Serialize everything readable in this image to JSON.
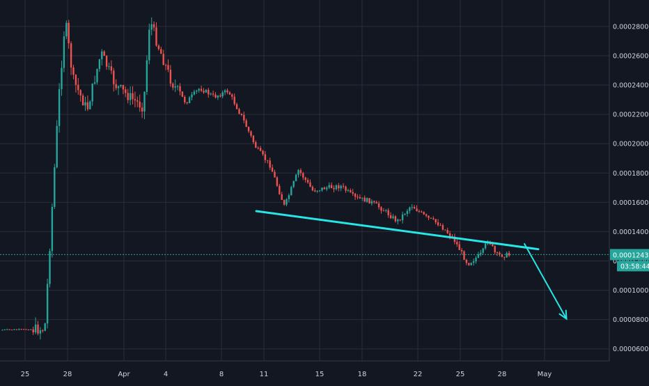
{
  "chart_data": {
    "type": "candlestick",
    "x_ticks": [
      "25",
      "28",
      "Apr",
      "4",
      "8",
      "11",
      "15",
      "18",
      "22",
      "25",
      "28",
      "May"
    ],
    "y_ticks": [
      "0.00006000",
      "0.00008000",
      "0.00010000",
      "0.00012000",
      "0.00014000",
      "0.00016000",
      "0.00018000",
      "0.00020000",
      "0.00022000",
      "0.00024000",
      "0.00026000",
      "0.00028000"
    ],
    "ylim": [
      5.18e-05,
      0.000298
    ],
    "last_price": "0.00012432",
    "countdown": "03:58:44",
    "colors": {
      "up": "#26a69a",
      "down": "#ef5350",
      "drawing": "#26e6e6",
      "price_line": "#26a69a",
      "background": "#131722",
      "grid": "#2a2e39"
    },
    "anchors": [
      {
        "date": "Mar 22",
        "price": 7.3e-05
      },
      {
        "date": "Mar 25",
        "price": 7.35e-05
      },
      {
        "date": "Mar 26",
        "price": 0.000232
      },
      {
        "date": "Mar 26 pm",
        "price": 0.000285
      },
      {
        "date": "Mar 27",
        "price": 0.000244
      },
      {
        "date": "Mar 28",
        "price": 0.000223
      },
      {
        "date": "Mar 29",
        "price": 0.000262
      },
      {
        "date": "Mar 30",
        "price": 0.00024
      },
      {
        "date": "Mar 31",
        "price": 0.000232
      },
      {
        "date": "Apr 1",
        "price": 0.000225
      },
      {
        "date": "Apr 1 pm",
        "price": 0.000285
      },
      {
        "date": "Apr 2",
        "price": 0.000268
      },
      {
        "date": "Apr 3",
        "price": 0.000242
      },
      {
        "date": "Apr 4",
        "price": 0.000228
      },
      {
        "date": "Apr 5",
        "price": 0.000238
      },
      {
        "date": "Apr 6",
        "price": 0.000232
      },
      {
        "date": "Apr 7",
        "price": 0.000236
      },
      {
        "date": "Apr 8",
        "price": 0.000218
      },
      {
        "date": "Apr 9",
        "price": 0.000197
      },
      {
        "date": "Apr 10",
        "price": 0.000185
      },
      {
        "date": "Apr 11",
        "price": 0.000157
      },
      {
        "date": "Apr 12",
        "price": 0.000182
      },
      {
        "date": "Apr 13",
        "price": 0.000168
      },
      {
        "date": "Apr 14",
        "price": 0.00017
      },
      {
        "date": "Apr 15",
        "price": 0.000171
      },
      {
        "date": "Apr 16",
        "price": 0.000163
      },
      {
        "date": "Apr 17",
        "price": 0.000161
      },
      {
        "date": "Apr 18",
        "price": 0.000155
      },
      {
        "date": "Apr 19",
        "price": 0.000147
      },
      {
        "date": "Apr 20",
        "price": 0.000158
      },
      {
        "date": "Apr 21",
        "price": 0.00015
      },
      {
        "date": "Apr 22",
        "price": 0.000145
      },
      {
        "date": "Apr 23",
        "price": 0.000135
      },
      {
        "date": "Apr 24",
        "price": 0.000118
      },
      {
        "date": "Apr 25",
        "price": 0.000125
      },
      {
        "date": "Apr 25 pm",
        "price": 0.000135
      },
      {
        "date": "Apr 26",
        "price": 0.000124
      },
      {
        "date": "Apr 27",
        "price": 0.000124
      }
    ],
    "trendline": {
      "from": {
        "date": "Apr 9",
        "price": 0.000154
      },
      "to": {
        "date": "Apr 29",
        "price": 0.000128
      }
    },
    "projection_arrow": {
      "from": {
        "date": "Apr 28",
        "price": 0.000132
      },
      "to": {
        "date": "May 1",
        "price": 8.05e-05
      }
    }
  }
}
